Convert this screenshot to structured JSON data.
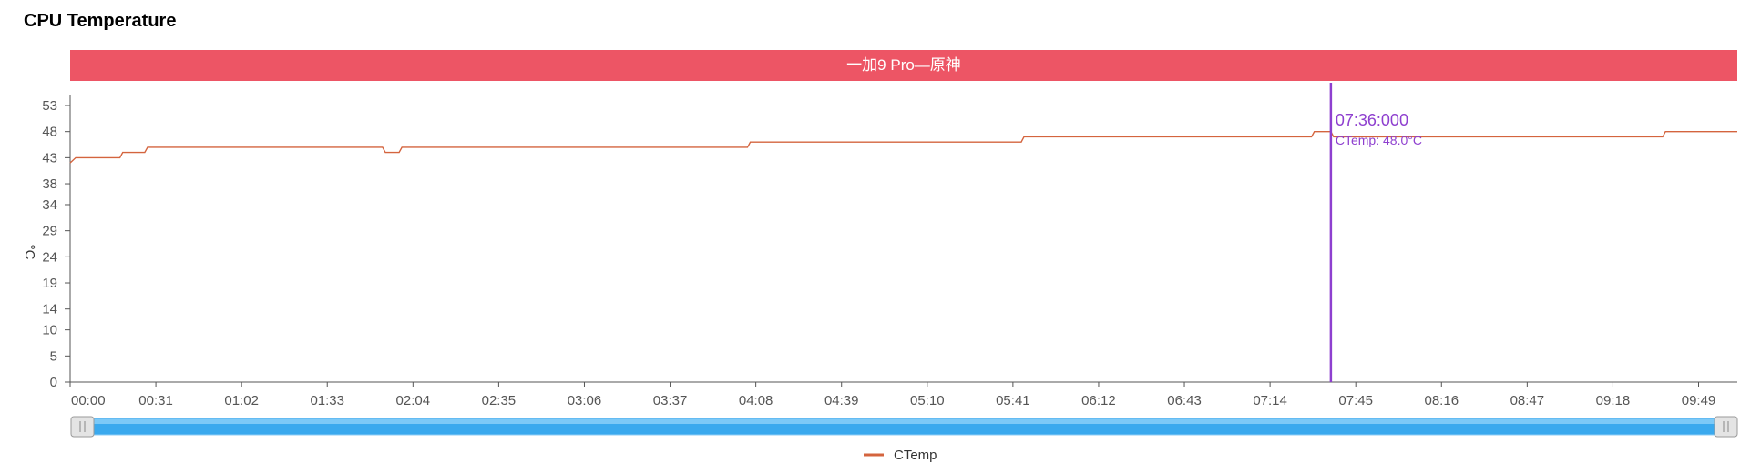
{
  "title": "CPU Temperature",
  "chart_data": {
    "type": "line",
    "subtitle": "一加9 Pro—原神",
    "ylabel": "°C",
    "xlabel": "",
    "ylim": [
      0,
      53
    ],
    "y_ticks": [
      0,
      5,
      10,
      14,
      19,
      24,
      29,
      34,
      38,
      43,
      48,
      53
    ],
    "x_ticks": [
      "00:00",
      "00:31",
      "01:02",
      "01:33",
      "02:04",
      "02:35",
      "03:06",
      "03:37",
      "04:08",
      "04:39",
      "05:10",
      "05:41",
      "06:12",
      "06:43",
      "07:14",
      "07:45",
      "08:16",
      "08:47",
      "09:18",
      "09:49"
    ],
    "xlim_seconds": [
      0,
      603
    ],
    "legend": "bottom",
    "grid": false,
    "series": [
      {
        "name": "CTemp",
        "color": "#d4643e",
        "points": [
          [
            "00:00",
            42
          ],
          [
            "00:02",
            43
          ],
          [
            "00:18",
            43
          ],
          [
            "00:19",
            44
          ],
          [
            "00:27",
            44
          ],
          [
            "00:28",
            45
          ],
          [
            "01:53",
            45
          ],
          [
            "01:54",
            44
          ],
          [
            "01:59",
            44
          ],
          [
            "02:00",
            45
          ],
          [
            "04:05",
            45
          ],
          [
            "04:06",
            46
          ],
          [
            "05:44",
            46
          ],
          [
            "05:45",
            47
          ],
          [
            "07:29",
            47
          ],
          [
            "07:30",
            48
          ],
          [
            "07:36",
            48
          ],
          [
            "07:37",
            47
          ],
          [
            "09:36",
            47
          ],
          [
            "09:37",
            48
          ],
          [
            "10:03",
            48
          ]
        ]
      }
    ],
    "tooltip": {
      "time": "07:36:000",
      "label": "CTemp: 48.0°C",
      "x": "07:36",
      "color": "#8e3fcf"
    }
  }
}
